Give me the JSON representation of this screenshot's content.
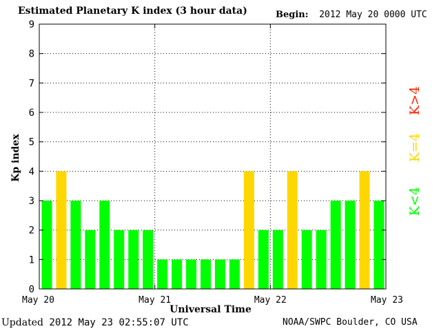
{
  "header": {
    "title": "Estimated Planetary K index (3 hour data)",
    "begin_label": "Begin:",
    "begin_value": "2012 May 20 0000 UTC"
  },
  "footer": {
    "updated_label": "Updated",
    "updated_value": "2012 May 23 02:55:07 UTC",
    "credit": "NOAA/SWPC Boulder, CO USA"
  },
  "legend": {
    "low": "K<4",
    "mid": "K=4",
    "high": "K>4"
  },
  "colors": {
    "low": "#00ff00",
    "mid": "#ffd700",
    "high": "#ff2200",
    "axis": "#000000",
    "grid": "#000000"
  },
  "chart_data": {
    "type": "bar",
    "title": "Estimated Planetary K index (3 hour data)",
    "xlabel": "Universal Time",
    "ylabel": "Kp index",
    "ylim": [
      0,
      9
    ],
    "yticks": [
      0,
      1,
      2,
      3,
      4,
      5,
      6,
      7,
      8,
      9
    ],
    "xtick_labels": [
      "May 20",
      "May 21",
      "May 22",
      "May 23"
    ],
    "grid": true,
    "legend_position": "right",
    "interval_hours": 3,
    "values": [
      3,
      4,
      3,
      2,
      3,
      2,
      2,
      2,
      1,
      1,
      1,
      1,
      1,
      1,
      4,
      2,
      2,
      4,
      2,
      2,
      3,
      3,
      4,
      3
    ]
  }
}
